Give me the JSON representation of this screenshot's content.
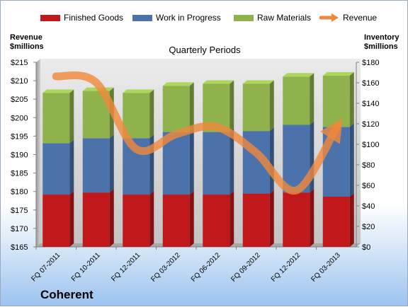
{
  "chart_data": {
    "type": "bar",
    "subtitle": "Quarterly Periods",
    "categories": [
      "FQ 07-2011",
      "FQ 10-2011",
      "FQ 12-2011",
      "FQ 03-2012",
      "FQ 06-2012",
      "FQ 09-2012",
      "FQ 12-2012",
      "FQ 03-2013"
    ],
    "left_axis": {
      "label_line1": "Revenue",
      "label_line2": "$millions",
      "min": 165,
      "max": 215,
      "step": 5,
      "ticks": [
        "$165",
        "$170",
        "$175",
        "$180",
        "$185",
        "$190",
        "$195",
        "$200",
        "$205",
        "$210",
        "$215"
      ]
    },
    "right_axis": {
      "label_line1": "Inventory",
      "label_line2": "$millions",
      "min": 0,
      "max": 180,
      "step": 20,
      "ticks": [
        "$0",
        "$20",
        "$40",
        "$60",
        "$80",
        "$100",
        "$120",
        "$140",
        "$160",
        "$180"
      ]
    },
    "series": [
      {
        "name": "Finished Goods",
        "kind": "stacked-bar",
        "axis": "right",
        "color": "#c0181b",
        "values": [
          51,
          53,
          51,
          51,
          51,
          52,
          53,
          49
        ]
      },
      {
        "name": "Work in Progress",
        "kind": "stacked-bar",
        "axis": "right",
        "color": "#4b72aa",
        "values": [
          50,
          53,
          55,
          61,
          61,
          61,
          66,
          68
        ]
      },
      {
        "name": "Raw Materials",
        "kind": "stacked-bar",
        "axis": "right",
        "color": "#8fb24c",
        "values": [
          49,
          46,
          44,
          45,
          47,
          46,
          47,
          50
        ]
      },
      {
        "name": "Revenue",
        "kind": "line",
        "axis": "left",
        "color": "#f0883b",
        "values": [
          211.2,
          209.5,
          191.5,
          195.5,
          197.5,
          190.5,
          180.3,
          197.2
        ]
      }
    ],
    "grid": false,
    "legend_position": "top"
  },
  "company": "Coherent"
}
